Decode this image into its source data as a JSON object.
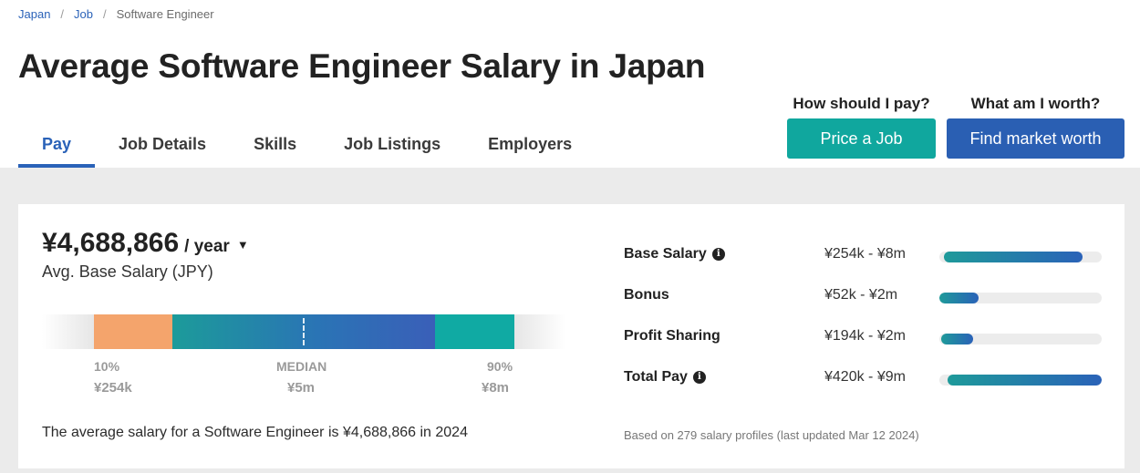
{
  "breadcrumb": [
    {
      "label": "Japan",
      "link": true
    },
    {
      "label": "Job",
      "link": true
    },
    {
      "label": "Software Engineer",
      "link": false
    }
  ],
  "page_title": "Average Software Engineer Salary in Japan",
  "tabs": [
    {
      "label": "Pay",
      "active": true
    },
    {
      "label": "Job Details",
      "active": false
    },
    {
      "label": "Skills",
      "active": false
    },
    {
      "label": "Job Listings",
      "active": false
    },
    {
      "label": "Employers",
      "active": false
    }
  ],
  "cta": {
    "price_job": {
      "question": "How should I pay?",
      "button": "Price a Job"
    },
    "market_worth": {
      "question": "What am I worth?",
      "button": "Find market worth"
    }
  },
  "salary": {
    "amount": "¥4,688,866",
    "period": "/ year",
    "label": "Avg. Base Salary (JPY)"
  },
  "distribution": {
    "p10": {
      "label": "10%",
      "value": "¥254k"
    },
    "median": {
      "label": "MEDIAN",
      "value": "¥5m"
    },
    "p90": {
      "label": "90%",
      "value": "¥8m"
    }
  },
  "avg_text": "The average salary for a Software Engineer is ¥4,688,866 in 2024",
  "breakdown": [
    {
      "label": "Base Salary",
      "has_info": true,
      "range": "¥254k - ¥8m",
      "bar_start": 0.03,
      "bar_end": 0.88
    },
    {
      "label": "Bonus",
      "has_info": false,
      "range": "¥52k - ¥2m",
      "bar_start": 0.0,
      "bar_end": 0.24
    },
    {
      "label": "Profit Sharing",
      "has_info": false,
      "range": "¥194k - ¥2m",
      "bar_start": 0.01,
      "bar_end": 0.21
    },
    {
      "label": "Total Pay",
      "has_info": true,
      "range": "¥420k - ¥9m",
      "bar_start": 0.05,
      "bar_end": 1.0
    }
  ],
  "based_on": "Based on 279 salary profiles (last updated Mar 12 2024)",
  "colors": {
    "accent_blue": "#2a62b8",
    "teal": "#10a79e",
    "orange": "#f4a46c"
  }
}
